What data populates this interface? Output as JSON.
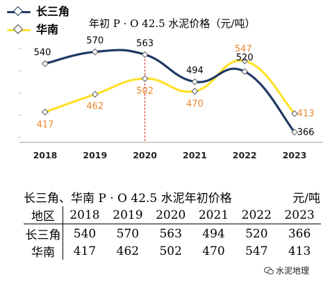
{
  "chart_data": {
    "type": "line",
    "title": "年初 P · O 42.5 水泥价格（元/吨）",
    "categories": [
      "2018",
      "2019",
      "2020",
      "2021",
      "2022",
      "2023"
    ],
    "series": [
      {
        "name": "长三角",
        "values": [
          540,
          570,
          563,
          494,
          520,
          366
        ],
        "color": "#1f3864",
        "label_color": "#000000"
      },
      {
        "name": "华南",
        "values": [
          417,
          462,
          502,
          470,
          547,
          413
        ],
        "color": "#ffe12a",
        "label_color": "#e8882c"
      }
    ],
    "ylim": [
      340,
      610
    ],
    "grid": false,
    "legend": "top-left",
    "annotation": "dashed red vertical line at 2020"
  },
  "table": {
    "title": "长三角、华南 P · O 42.5 水泥年初价格",
    "unit": "元/吨",
    "header": [
      "地区",
      "2018",
      "2019",
      "2020",
      "2021",
      "2022",
      "2023"
    ],
    "rows": [
      [
        "长三角",
        "540",
        "570",
        "563",
        "494",
        "520",
        "366"
      ],
      [
        "华南",
        "417",
        "462",
        "502",
        "470",
        "547",
        "413"
      ]
    ]
  },
  "watermark": "水泥地理"
}
